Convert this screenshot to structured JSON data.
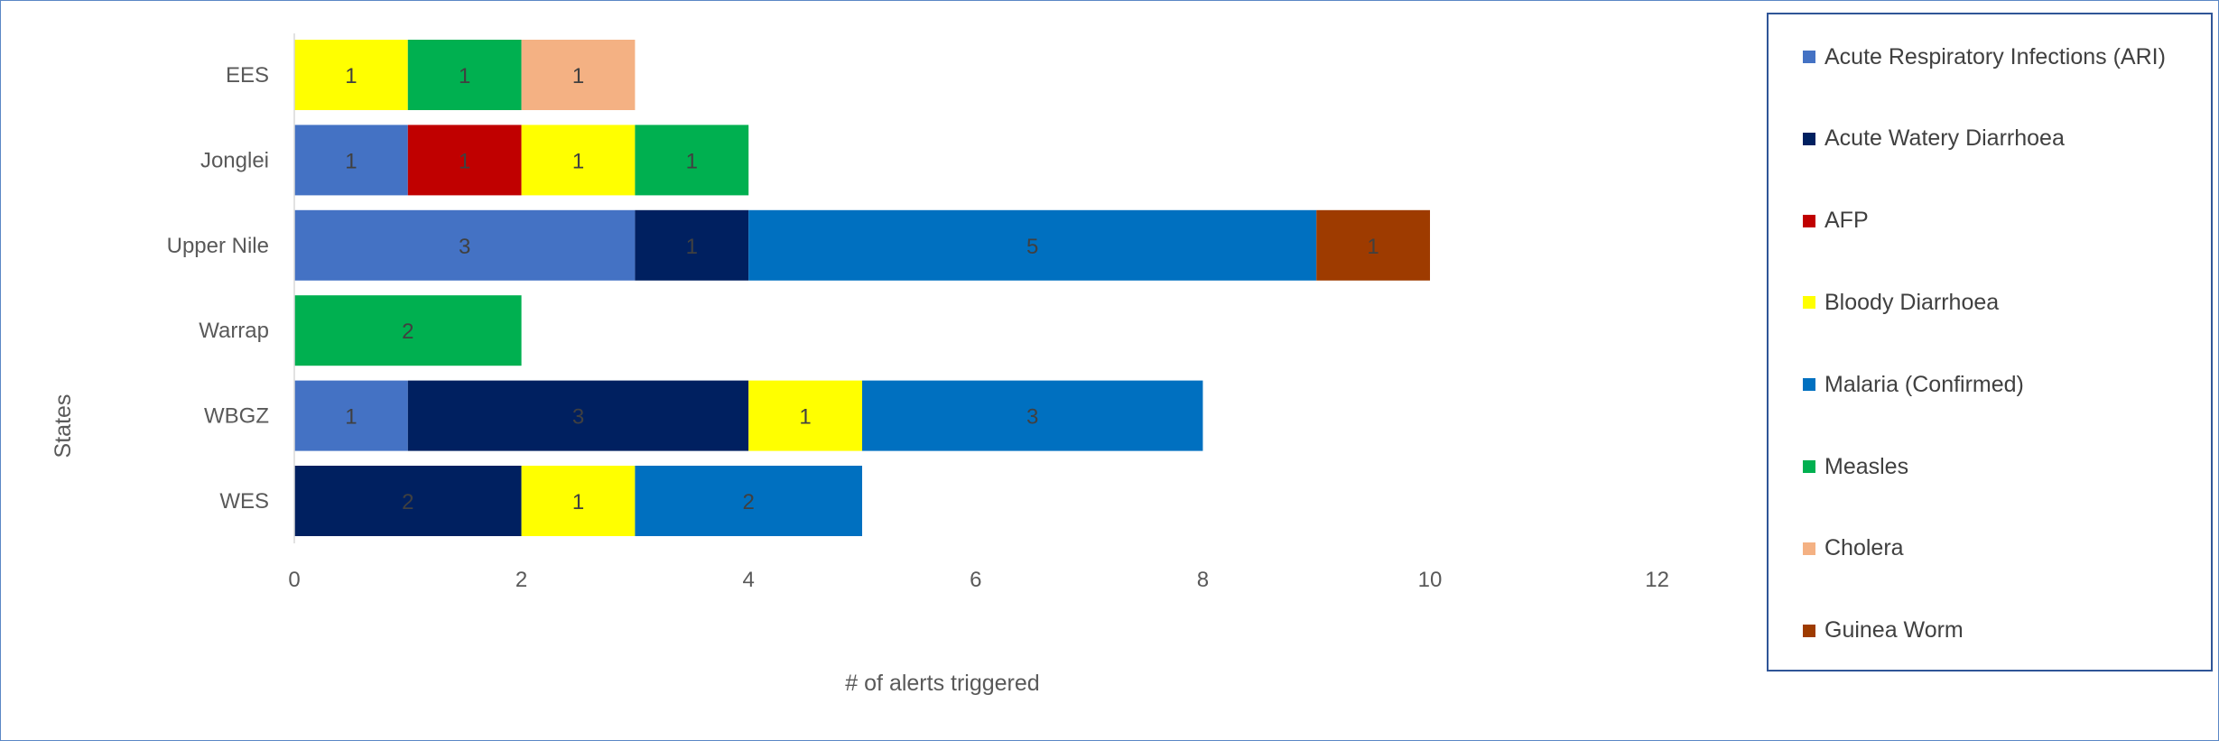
{
  "chart_data": {
    "type": "bar",
    "orientation": "horizontal",
    "stacked": true,
    "categories": [
      "EES",
      "Jonglei",
      "Upper Nile",
      "Warrap",
      "WBGZ",
      "WES"
    ],
    "series": [
      {
        "name": "Acute Respiratory Infections (ARI)",
        "color": "#4472c4",
        "values": [
          0,
          1,
          3,
          0,
          1,
          0
        ]
      },
      {
        "name": "Acute Watery Diarrhoea",
        "color": "#002060",
        "values": [
          0,
          0,
          1,
          0,
          3,
          2
        ]
      },
      {
        "name": "AFP",
        "color": "#c00000",
        "values": [
          0,
          1,
          0,
          0,
          0,
          0
        ]
      },
      {
        "name": "Bloody Diarrhoea",
        "color": "#ffff00",
        "values": [
          1,
          1,
          0,
          0,
          1,
          1
        ]
      },
      {
        "name": "Malaria (Confirmed)",
        "color": "#0070c0",
        "values": [
          0,
          0,
          5,
          0,
          3,
          2
        ]
      },
      {
        "name": "Measles",
        "color": "#00b050",
        "values": [
          1,
          1,
          0,
          2,
          0,
          0
        ]
      },
      {
        "name": "Cholera",
        "color": "#f4b183",
        "values": [
          1,
          0,
          0,
          0,
          0,
          0
        ]
      },
      {
        "name": "Guinea Worm",
        "color": "#9e3b00",
        "values": [
          0,
          0,
          1,
          0,
          0,
          0
        ]
      }
    ],
    "xlabel": "# of alerts triggered",
    "ylabel": "States",
    "xlim": [
      0,
      12
    ],
    "xticks": [
      "0",
      "2",
      "4",
      "6",
      "8",
      "10",
      "12"
    ],
    "grid": false,
    "legend_position": "right"
  }
}
